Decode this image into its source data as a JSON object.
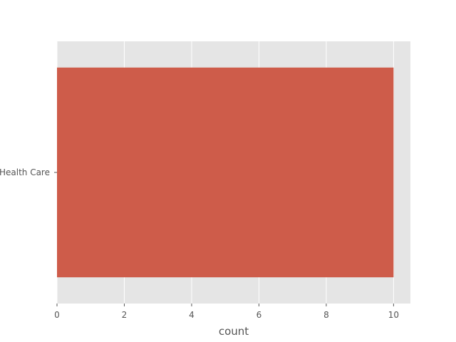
{
  "chart_data": {
    "type": "bar",
    "orientation": "horizontal",
    "title": "",
    "xlabel": "count",
    "ylabel": "",
    "categories": [
      "Health Care"
    ],
    "values": [
      10
    ],
    "xlim": [
      0,
      10.5
    ],
    "x_ticks": [
      "0",
      "2",
      "4",
      "6",
      "8",
      "10"
    ],
    "grid": true,
    "legend": "none",
    "colors": {
      "bar": "#CE5C4A",
      "plot_background": "#E5E5E5",
      "grid": "#FFFFFF",
      "text": "#555555"
    }
  }
}
